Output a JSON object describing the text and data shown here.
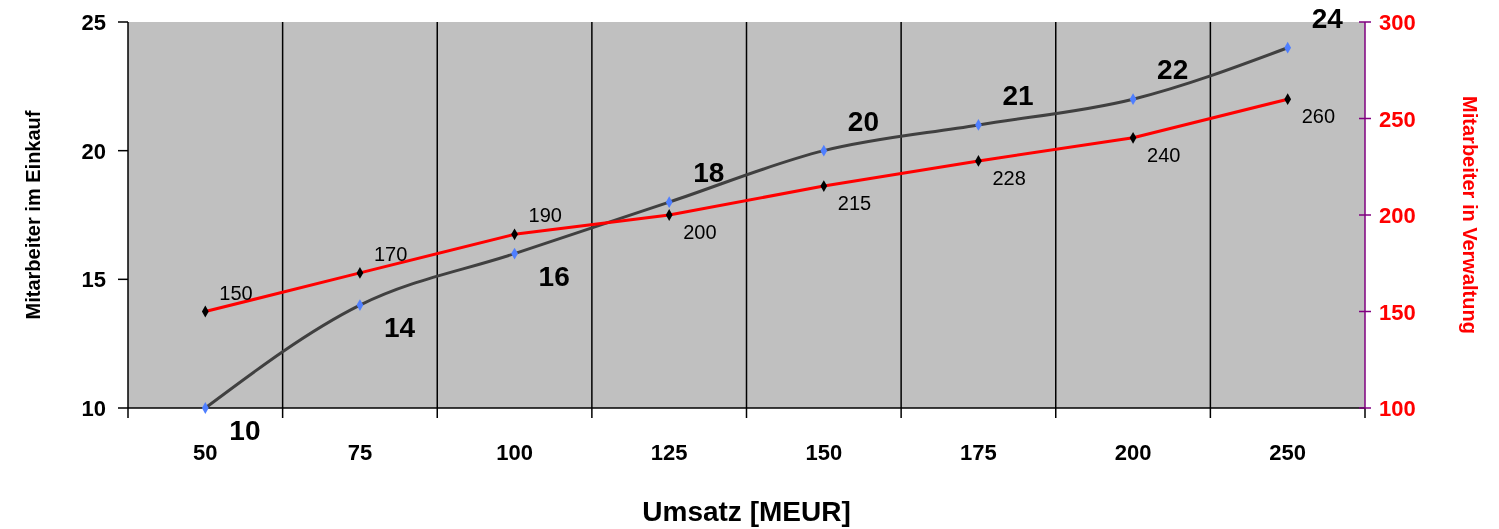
{
  "chart_data": {
    "type": "line",
    "xlabel": "Umsatz [MEUR]",
    "ylabel": "Mitarbeiter im Einkauf",
    "y2label": "Mitarbeiter in Verwaltung",
    "categories": [
      "50",
      "75",
      "100",
      "125",
      "150",
      "175",
      "200",
      "250"
    ],
    "series": [
      {
        "color": "#404040",
        "colors": [
          "#4f7fff",
          "#4f7fff",
          "#4f7fff",
          "#4f7fff",
          "#4f7fff",
          "#4f7fff",
          "#4f7fff",
          "#4f7fff"
        ],
        "values": [
          10,
          14,
          16,
          18,
          20,
          21,
          22,
          24
        ]
      },
      {
        "color": "#ff0000",
        "axis": "y2",
        "colors": [
          "#000000",
          "#000000",
          "#000000",
          "#000000",
          "#000000",
          "#000000",
          "#000000",
          "#000000"
        ],
        "values": [
          150,
          170,
          190,
          200,
          215,
          228,
          240,
          260
        ]
      }
    ],
    "ylim": [
      10,
      25
    ],
    "yticks": [
      10,
      15,
      20,
      25
    ],
    "y2lim": [
      100,
      300
    ],
    "y2ticks": [
      100,
      150,
      200,
      250,
      300
    ],
    "grid": "x",
    "marker": "diamond",
    "data_labels": true
  }
}
